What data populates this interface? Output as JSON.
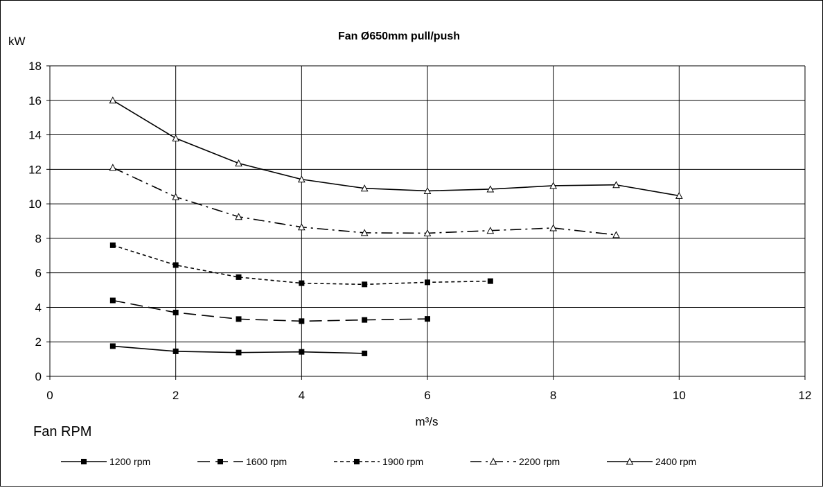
{
  "chart_data": {
    "type": "line",
    "title": "Fan Ø650mm pull/push",
    "ylabel": "kW",
    "xlabel": "m³/s",
    "legend_title": "Fan RPM",
    "xlim": [
      0,
      12
    ],
    "ylim": [
      0,
      18
    ],
    "x_ticks": [
      0,
      2,
      4,
      6,
      8,
      10,
      12
    ],
    "y_ticks": [
      0,
      2,
      4,
      6,
      8,
      10,
      12,
      14,
      16,
      18
    ],
    "grid": true,
    "legend_position": "bottom",
    "series": [
      {
        "name": "1200 rpm",
        "marker": "square",
        "dash": "solid",
        "x": [
          1,
          2,
          3,
          4,
          5
        ],
        "y": [
          1.75,
          1.45,
          1.38,
          1.42,
          1.33
        ]
      },
      {
        "name": "1600 rpm",
        "marker": "square",
        "dash": "long-dash",
        "x": [
          1,
          2,
          3,
          4,
          5,
          6
        ],
        "y": [
          4.4,
          3.7,
          3.32,
          3.2,
          3.27,
          3.33
        ]
      },
      {
        "name": "1900 rpm",
        "marker": "square",
        "dash": "short-dash",
        "x": [
          1,
          2,
          3,
          4,
          5,
          6,
          7
        ],
        "y": [
          7.6,
          6.45,
          5.75,
          5.4,
          5.33,
          5.45,
          5.52
        ]
      },
      {
        "name": "2200 rpm",
        "marker": "triangle",
        "dash": "dash-dot",
        "x": [
          1,
          2,
          3,
          4,
          5,
          6,
          7,
          8,
          9
        ],
        "y": [
          12.1,
          10.4,
          9.25,
          8.65,
          8.32,
          8.3,
          8.45,
          8.6,
          8.2
        ]
      },
      {
        "name": "2400 rpm",
        "marker": "triangle",
        "dash": "solid",
        "x": [
          1,
          2,
          3,
          4,
          5,
          6,
          7,
          8,
          9,
          10
        ],
        "y": [
          16.0,
          13.8,
          12.35,
          11.42,
          10.9,
          10.75,
          10.85,
          11.05,
          11.1,
          10.47
        ]
      }
    ]
  }
}
